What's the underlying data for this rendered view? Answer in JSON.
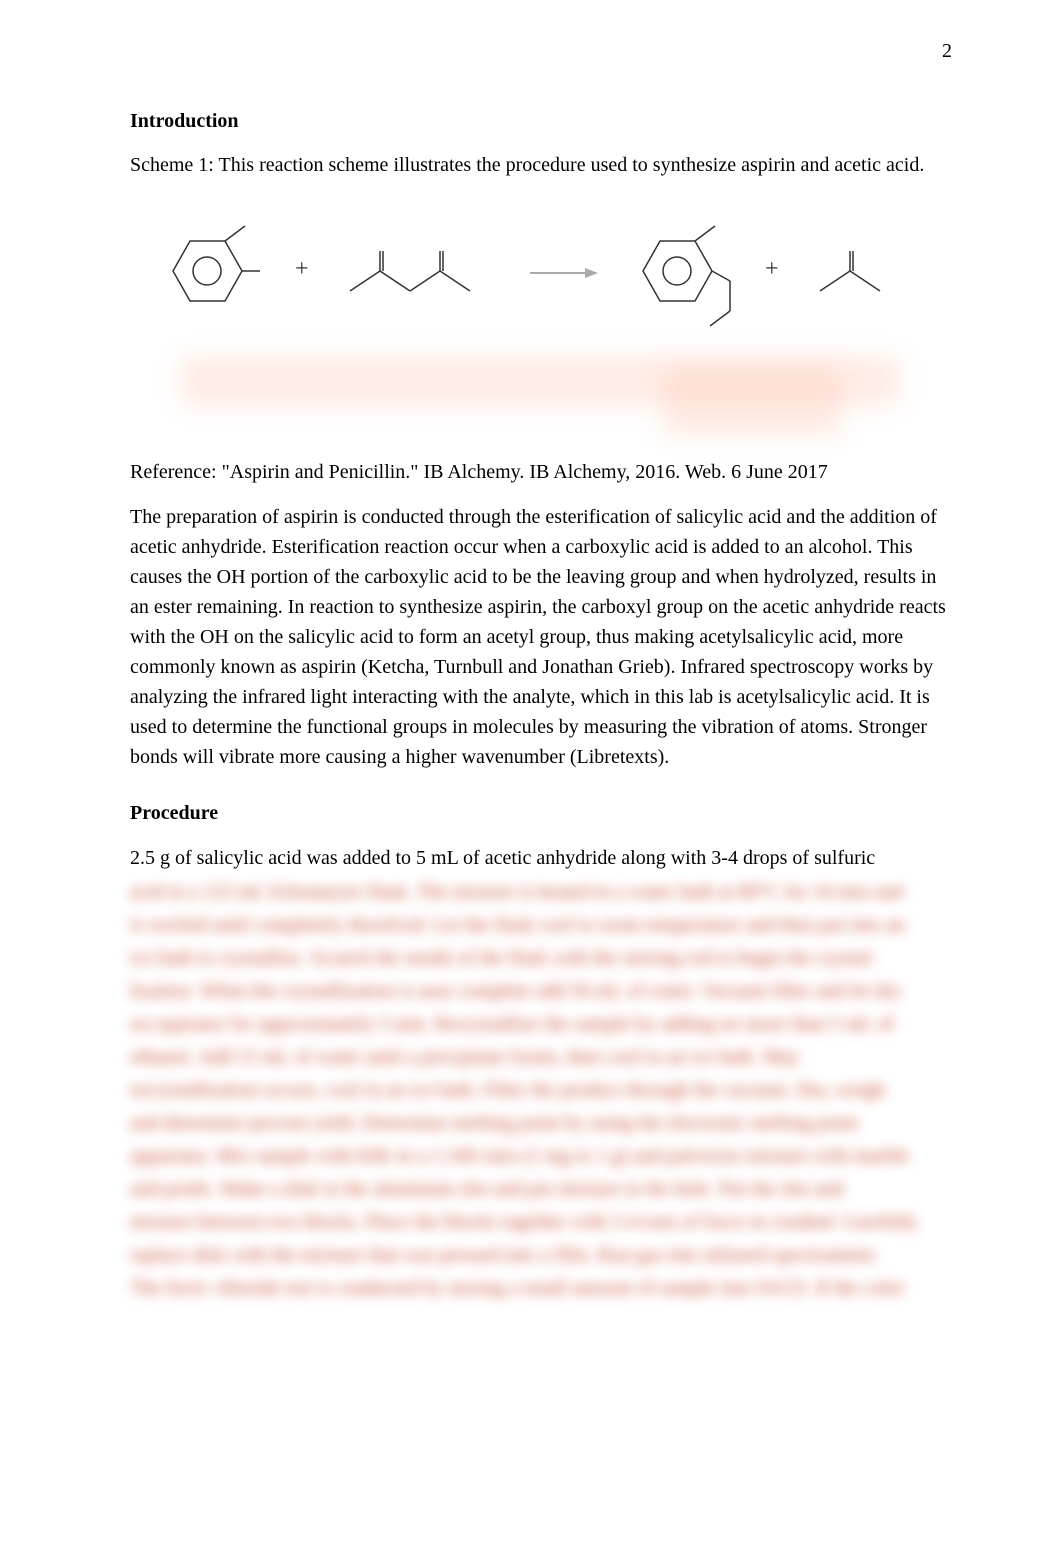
{
  "pageNumber": "2",
  "sections": {
    "introduction": {
      "heading": "Introduction",
      "schemeCaption": "Scheme 1:  This reaction scheme illustrates the procedure used to synthesize aspirin and acetic acid."
    },
    "reference": "Reference: \"Aspirin and Penicillin.\" IB Alchemy. IB Alchemy, 2016. Web. 6 June 2017",
    "introParagraph": "The preparation of aspirin is conducted through the esterification of salicylic acid and the addition of acetic anhydride. Esterification reaction occur when a carboxylic acid is added to an alcohol. This causes the OH portion of the carboxylic acid to be the leaving group and when hydrolyzed, results in an ester remaining. In reaction to synthesize aspirin, the carboxyl group on the acetic anhydride reacts with the OH on the salicylic acid to form an acetyl group, thus making acetylsalicylic acid, more commonly known as aspirin (Ketcha, Turnbull and Jonathan Grieb). Infrared spectroscopy works by analyzing the infrared light interacting with the analyte, which in this lab is acetylsalicylic acid. It is used to determine the functional groups in molecules by measuring the vibration of atoms. Stronger bonds will vibrate more causing a higher wavenumber (Libretexts).",
    "procedure": {
      "heading": "Procedure",
      "visibleText": "2.5 g of salicylic acid was added to 5 mL of acetic anhydride along with 3-4 drops of sulfuric",
      "blurredLines": [
        "acid in a 125 mL Erlenmeyer flask. The mixture is heated in a water bath at 80°C for 10 min and",
        "is swirled until completely dissolved. Let the flask cool to room temperature and then put into an",
        "ice bath to crystallize. Scratch the inside of the flask with the stirring rod to begin the crystal-",
        "lization. When the crystallization is near complete add 50 mL of water. Vacuum filter and let dry",
        "on aspirator for approximately 5 min. Recrystallize the sample by adding no more than 5 mL of",
        "ethanol. Add 15 mL of water until a precipitate forms, then cool in an ice bath. May",
        "recrystallization occurs, cool in an ice bath. Filter the product through the vacuum. Dry, weigh",
        "and determine percent yield. Determine melting point by using the electronic melting point",
        "apparatus. Mix sample with KBr in a 1:100 ratio (1 mg to 1 g) and pulverize mixture with marble",
        "and pestle. Make a disk in the aluminum slot and put mixture in the hole. Put the slot and",
        "mixture between two blocks. Place the blocks together with 3-4 tons of force in crushed. Carefully",
        "replace disk with the mixture that was pressed into a film. Run gas into infrared spectrometer.",
        "The ferric chloride test is conducted by mixing a small amount of sample into FeCl3. If the color"
      ]
    }
  },
  "diagram": {
    "hexagonStroke": "#333333",
    "hexagonFill": "none",
    "plusColor": "#333333",
    "arrowColor": "#aaaaaa"
  }
}
